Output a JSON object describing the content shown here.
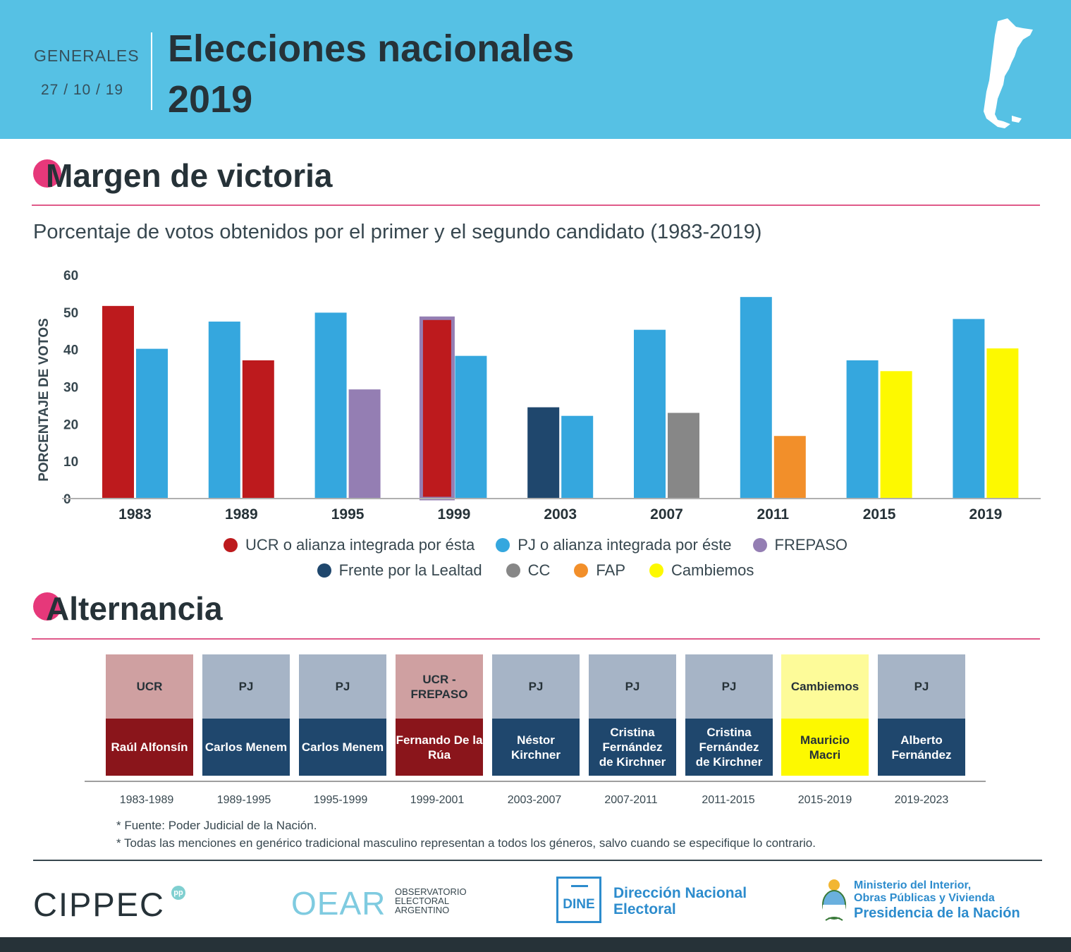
{
  "header": {
    "kicker": "GENERALES",
    "date": "27 / 10 / 19",
    "title_line1": "Elecciones nacionales",
    "title_line2": "2019"
  },
  "section_margin": {
    "title": "Margen de victoria"
  },
  "section_alternancia": {
    "title": "Alternancia"
  },
  "colors": {
    "ucr": "#bd1a1d",
    "pj": "#35a7de",
    "frepaso": "#947eb3",
    "lealtad": "#1f476d",
    "cc": "#878787",
    "fap": "#f28f2a",
    "cambiemos": "#fdf900",
    "accent": "#e6387a",
    "header_bg": "#56c1e4"
  },
  "chart_data": {
    "type": "bar",
    "title": "Porcentaje de votos obtenidos por el primer y el segundo candidato (1983-2019)",
    "ylabel": "PORCENTAJE DE VOTOS",
    "xlabel": "",
    "ylim": [
      0,
      60
    ],
    "yticks": [
      0,
      10,
      20,
      30,
      40,
      50,
      60
    ],
    "categories": [
      "1983",
      "1989",
      "1995",
      "1999",
      "2003",
      "2007",
      "2011",
      "2015",
      "2019"
    ],
    "bars": [
      [
        {
          "party": "ucr",
          "value": 51.7
        },
        {
          "party": "pj",
          "value": 40.2
        }
      ],
      [
        {
          "party": "pj",
          "value": 47.5
        },
        {
          "party": "ucr",
          "value": 37.1
        }
      ],
      [
        {
          "party": "pj",
          "value": 49.9
        },
        {
          "party": "frepaso",
          "value": 29.3
        }
      ],
      [
        {
          "party": "ucr",
          "outline": "frepaso",
          "value": 48.4
        },
        {
          "party": "pj",
          "value": 38.3
        }
      ],
      [
        {
          "party": "lealtad",
          "value": 24.5
        },
        {
          "party": "pj",
          "value": 22.2
        }
      ],
      [
        {
          "party": "pj",
          "value": 45.3
        },
        {
          "party": "cc",
          "value": 23.0
        }
      ],
      [
        {
          "party": "pj",
          "value": 54.1
        },
        {
          "party": "fap",
          "value": 16.8
        }
      ],
      [
        {
          "party": "pj",
          "value": 37.1
        },
        {
          "party": "cambiemos",
          "value": 34.2
        }
      ],
      [
        {
          "party": "pj",
          "value": 48.2
        },
        {
          "party": "cambiemos",
          "value": 40.3
        }
      ]
    ],
    "legend": [
      {
        "party": "ucr",
        "label": "UCR o alianza integrada por ésta"
      },
      {
        "party": "pj",
        "label": "PJ o alianza integrada por éste"
      },
      {
        "party": "frepaso",
        "label": "FREPASO"
      },
      {
        "party": "lealtad",
        "label": "Frente por la Lealtad"
      },
      {
        "party": "cc",
        "label": "CC"
      },
      {
        "party": "fap",
        "label": "FAP"
      },
      {
        "party": "cambiemos",
        "label": "Cambiemos"
      }
    ]
  },
  "alternancia": [
    {
      "party": "UCR",
      "president": "Raúl Alfonsín",
      "period": "1983-1989",
      "style": "ucr"
    },
    {
      "party": "PJ",
      "president": "Carlos Menem",
      "period": "1989-1995",
      "style": "pj"
    },
    {
      "party": "PJ",
      "president": "Carlos Menem",
      "period": "1995-1999",
      "style": "pj"
    },
    {
      "party": "UCR - FREPASO",
      "president": "Fernando De la Rúa",
      "period": "1999-2001",
      "style": "ucr"
    },
    {
      "party": "PJ",
      "president": "Néstor Kirchner",
      "period": "2003-2007",
      "style": "pj"
    },
    {
      "party": "PJ",
      "president": "Cristina Fernández de Kirchner",
      "period": "2007-2011",
      "style": "pj"
    },
    {
      "party": "PJ",
      "president": "Cristina Fernández de Kirchner",
      "period": "2011-2015",
      "style": "pj"
    },
    {
      "party": "Cambiemos",
      "president": "Mauricio Macri",
      "period": "2015-2019",
      "style": "cambiemos"
    },
    {
      "party": "PJ",
      "president": "Alberto Fernández",
      "period": "2019-2023",
      "style": "pj"
    }
  ],
  "footnotes": {
    "source": "* Fuente: Poder Judicial de la Nación.",
    "gender": "* Todas las menciones en genérico tradicional masculino representan a todos los géneros, salvo cuando se especifique lo contrario."
  },
  "logos": {
    "cippec": "CIPPEC",
    "cippec_badge": "pp",
    "oear": "OEAR",
    "oear_line1": "OBSERVATORIO",
    "oear_line2": "ELECTORAL",
    "oear_line3": "ARGENTINO",
    "dine": "DINE",
    "dine_line1": "Dirección Nacional",
    "dine_line2": "Electoral",
    "min_line1": "Ministerio del Interior,",
    "min_line2": "Obras Públicas y Vivienda",
    "min_line3": "Presidencia de la Nación"
  }
}
